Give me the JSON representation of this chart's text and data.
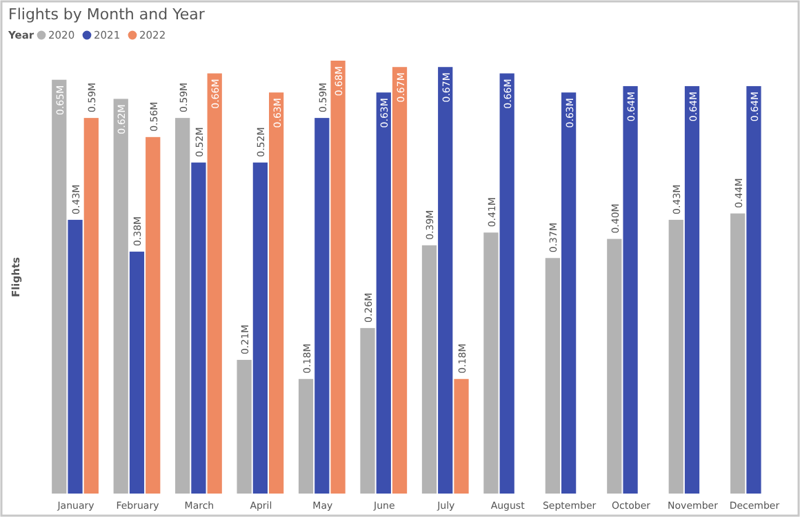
{
  "chart_data": {
    "type": "bar",
    "title": "Flights by Month and Year",
    "ylabel": "Flights",
    "legend_title": "Year",
    "legend": "top left",
    "ylim": [
      0,
      0.68
    ],
    "tick_labels": "x",
    "categories": [
      "January",
      "February",
      "March",
      "April",
      "May",
      "June",
      "July",
      "August",
      "September",
      "October",
      "November",
      "December"
    ],
    "series": [
      {
        "name": "2020",
        "color": "#b3b3b3",
        "values": [
          0.65,
          0.62,
          0.59,
          0.21,
          0.18,
          0.26,
          0.39,
          0.41,
          0.37,
          0.4,
          0.43,
          0.44
        ],
        "value_labels": [
          "0.65M",
          "0.62M",
          "0.59M",
          "0.21M",
          "0.18M",
          "0.26M",
          "0.39M",
          "0.41M",
          "0.37M",
          "0.40M",
          "0.43M",
          "0.44M"
        ]
      },
      {
        "name": "2021",
        "color": "#3c4fae",
        "values": [
          0.43,
          0.38,
          0.52,
          0.52,
          0.59,
          0.63,
          0.67,
          0.66,
          0.63,
          0.64,
          0.64,
          0.64
        ],
        "value_labels": [
          "0.43M",
          "0.38M",
          "0.52M",
          "0.52M",
          "0.59M",
          "0.63M",
          "0.67M",
          "0.66M",
          "0.63M",
          "0.64M",
          "0.64M",
          "0.64M"
        ]
      },
      {
        "name": "2022",
        "color": "#ef8a62",
        "values": [
          0.59,
          0.56,
          0.66,
          0.63,
          0.68,
          0.67,
          0.18,
          null,
          null,
          null,
          null,
          null
        ],
        "value_labels": [
          "0.59M",
          "0.56M",
          "0.66M",
          "0.63M",
          "0.68M",
          "0.67M",
          "0.18M",
          null,
          null,
          null,
          null,
          null
        ]
      }
    ]
  }
}
